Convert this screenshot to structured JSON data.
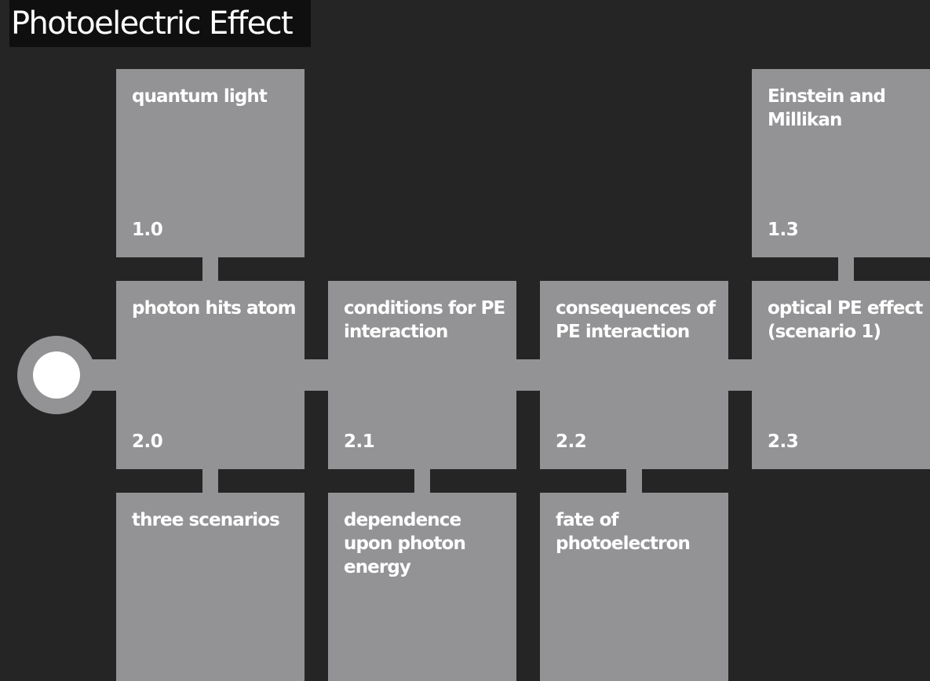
{
  "title": "Photoelectric Effect",
  "colors": {
    "background": "#252525",
    "title_background": "#0f0f0f",
    "tile": "#939396",
    "text": "#ffffff"
  },
  "tiles": [
    {
      "label": "quantum light",
      "number": "1.0"
    },
    {
      "label": "Einstein and Millikan",
      "number": "1.3"
    },
    {
      "label": "photon hits atom",
      "number": "2.0"
    },
    {
      "label": "conditions for PE interaction",
      "number": "2.1"
    },
    {
      "label": "consequences of PE interaction",
      "number": "2.2"
    },
    {
      "label": "optical PE effect (scenario 1)",
      "number": "2.3"
    },
    {
      "label": "three scenarios",
      "number": ""
    },
    {
      "label": "dependence upon photon energy",
      "number": ""
    },
    {
      "label": "fate of photoelectron",
      "number": ""
    }
  ]
}
